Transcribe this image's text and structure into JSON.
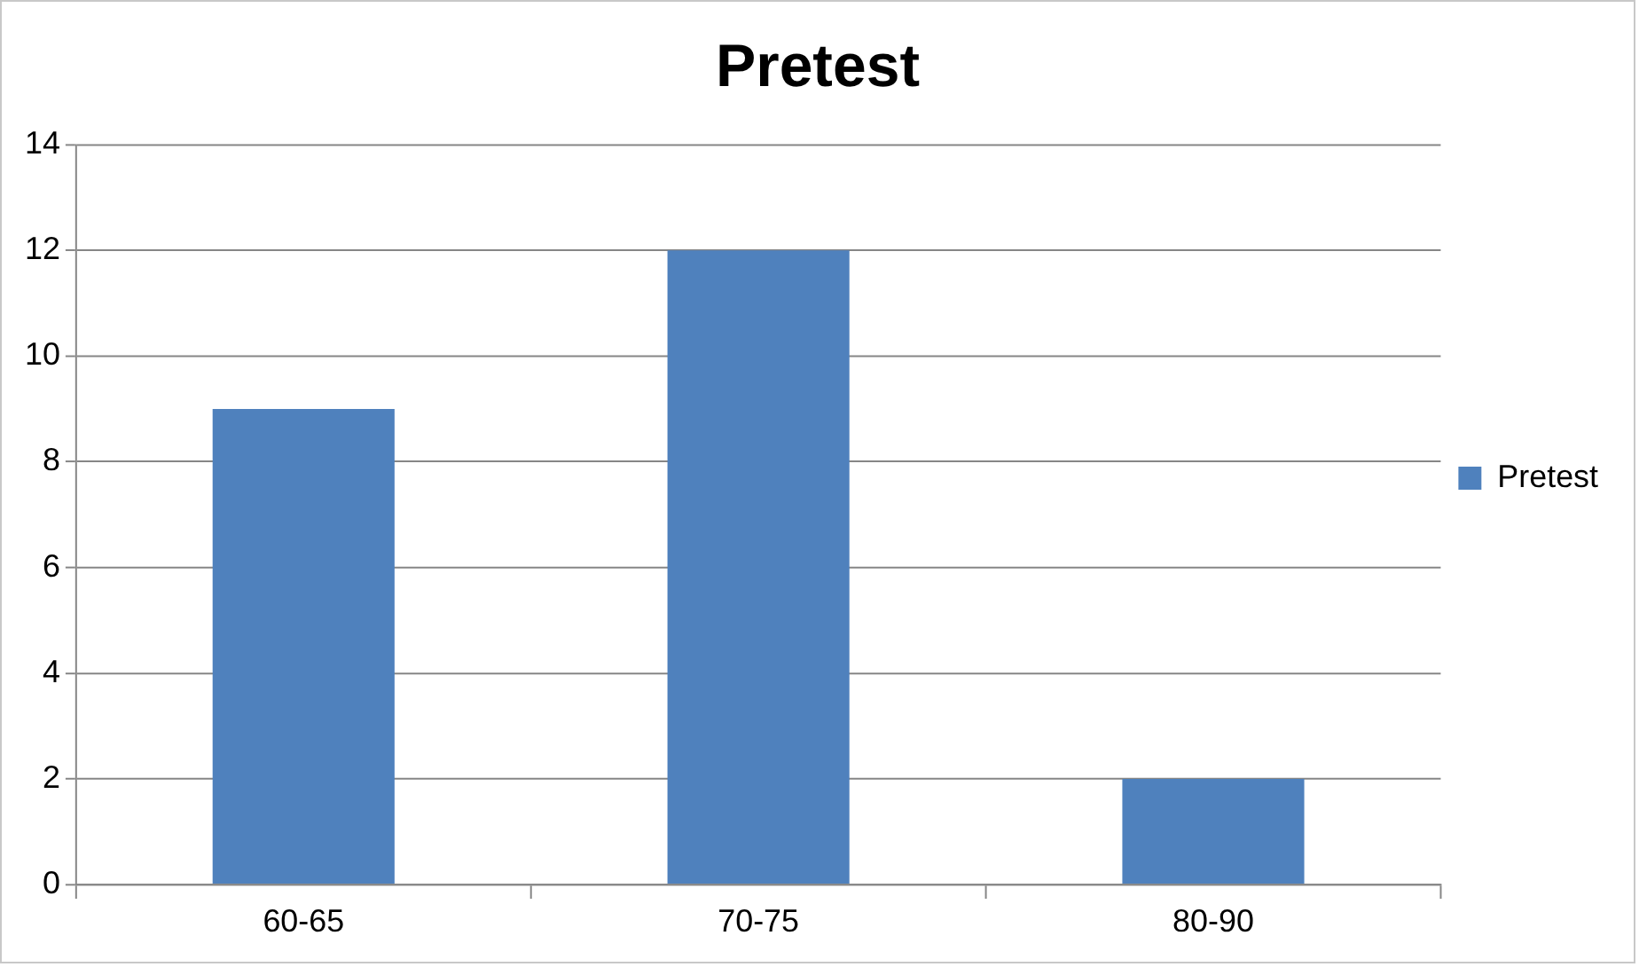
{
  "chart_data": {
    "type": "bar",
    "title": "Pretest",
    "categories": [
      "60-65",
      "70-75",
      "80-90"
    ],
    "series": [
      {
        "name": "Pretest",
        "color": "#4f81bd",
        "values": [
          9,
          12,
          2
        ]
      }
    ],
    "ylim": [
      0,
      14
    ],
    "yticks": [
      0,
      2,
      4,
      6,
      8,
      10,
      12,
      14
    ],
    "grid": "y",
    "legend": "right"
  }
}
